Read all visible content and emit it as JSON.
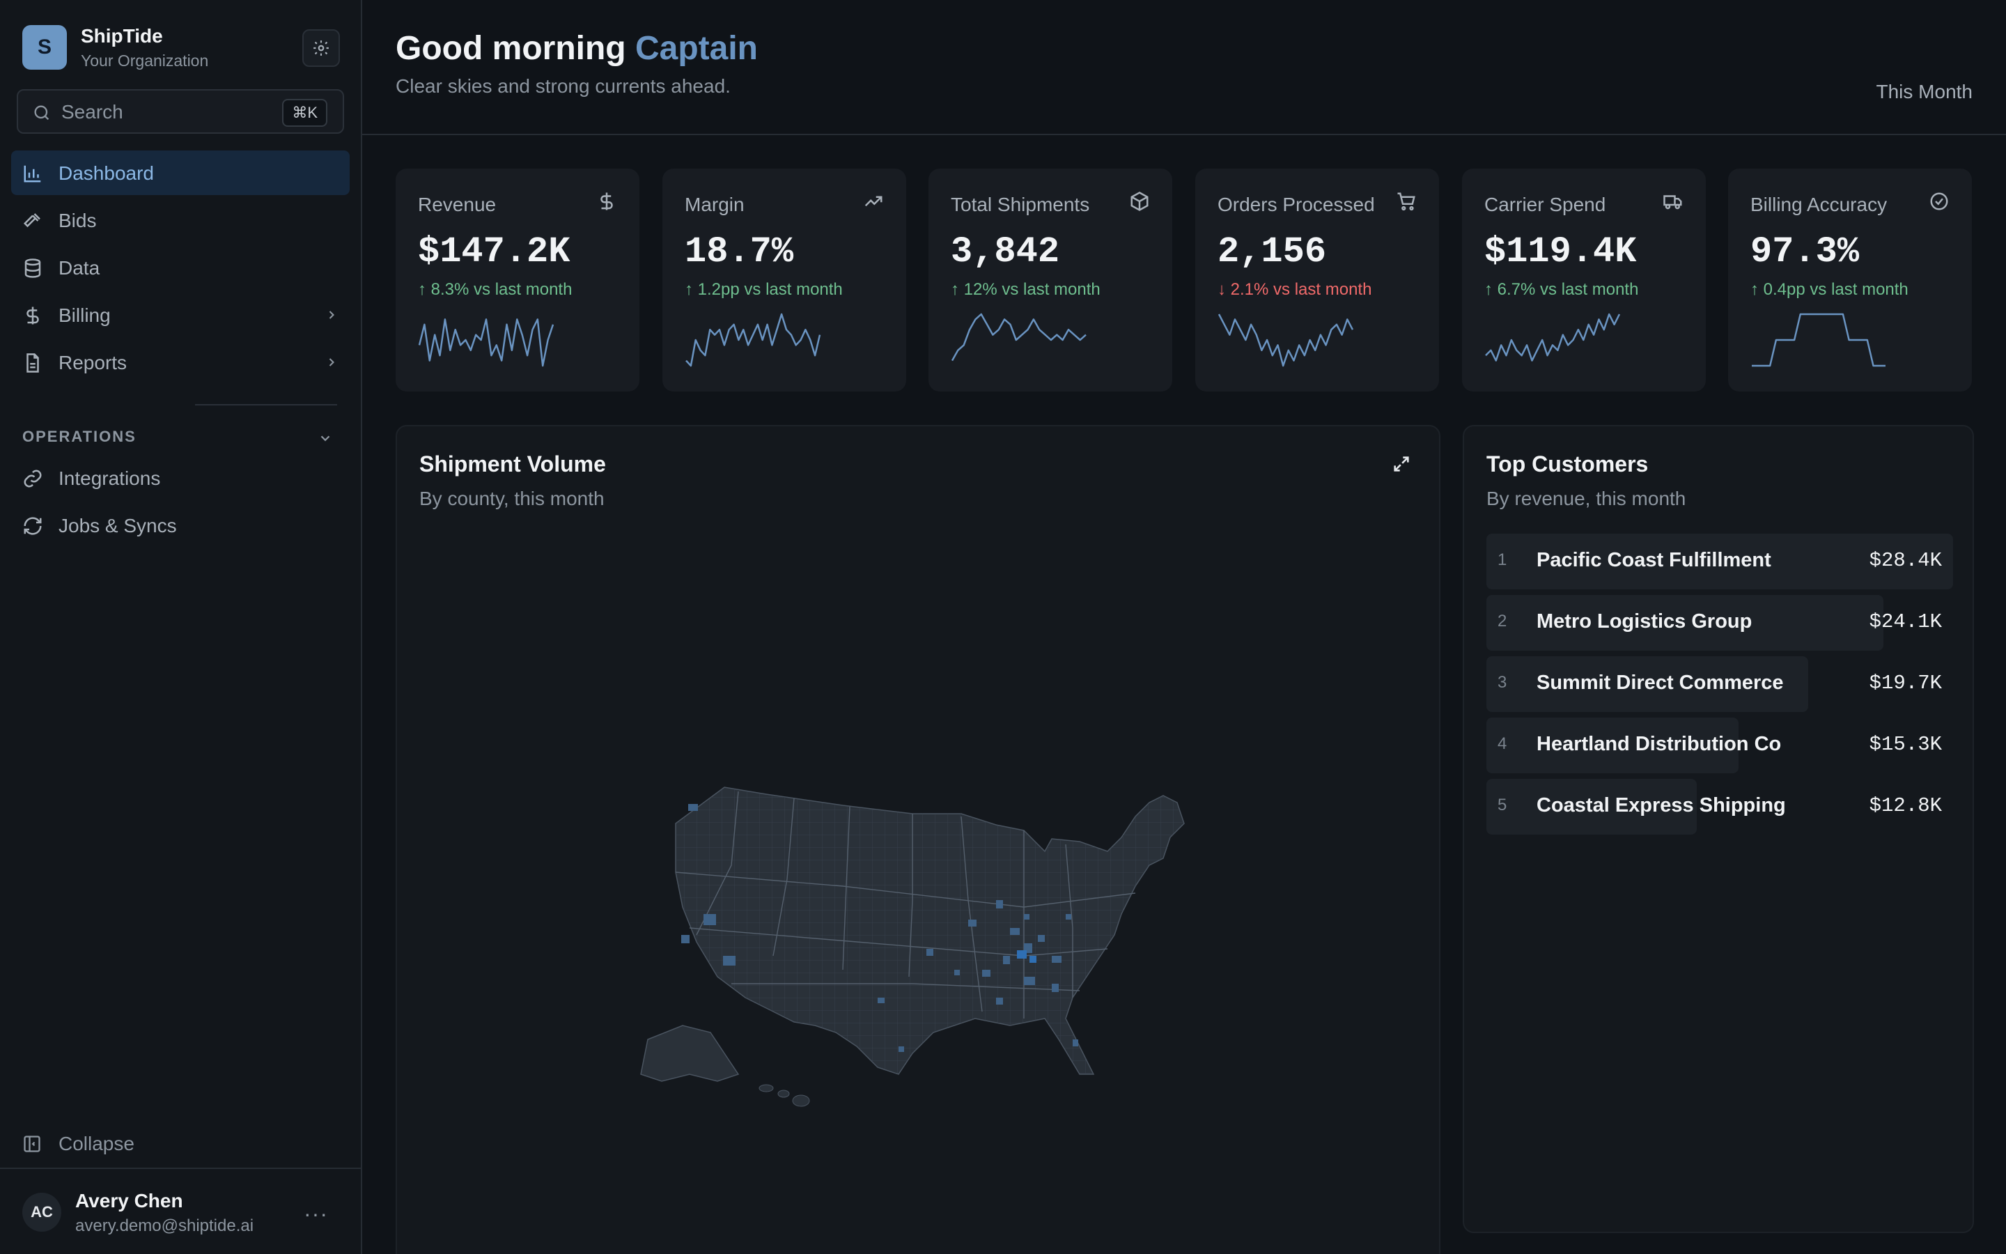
{
  "org": {
    "initial": "S",
    "name": "ShipTide",
    "subtitle": "Your Organization"
  },
  "search": {
    "placeholder": "Search",
    "shortcut": "⌘K"
  },
  "nav": [
    {
      "label": "Dashboard",
      "icon": "bar-chart-icon",
      "active": true
    },
    {
      "label": "Bids",
      "icon": "gavel-icon"
    },
    {
      "label": "Data",
      "icon": "database-icon"
    },
    {
      "label": "Billing",
      "icon": "dollar-icon",
      "expandable": true
    },
    {
      "label": "Reports",
      "icon": "document-icon",
      "expandable": true
    }
  ],
  "operations": {
    "label": "OPERATIONS",
    "items": [
      {
        "label": "Integrations",
        "icon": "link-icon"
      },
      {
        "label": "Jobs & Syncs",
        "icon": "refresh-icon"
      }
    ]
  },
  "collapse_label": "Collapse",
  "user": {
    "initials": "AC",
    "name": "Avery Chen",
    "email": "avery.demo@shiptide.ai"
  },
  "header": {
    "greeting": "Good morning",
    "name": "Captain",
    "subtitle": "Clear skies and strong currents ahead.",
    "period": "This Month"
  },
  "kpis": [
    {
      "label": "Revenue",
      "value": "$147.2K",
      "delta": "↑ 8.3% vs last month",
      "direction": "up",
      "icon": "dollar-icon",
      "spark": [
        0.4,
        0.8,
        0.1,
        0.6,
        0.2,
        0.9,
        0.3,
        0.7,
        0.4,
        0.5,
        0.3,
        0.6,
        0.5,
        0.9,
        0.2,
        0.4,
        0.1,
        0.8,
        0.3,
        0.9,
        0.6,
        0.2,
        0.7,
        0.9,
        0.0,
        0.5,
        0.8
      ]
    },
    {
      "label": "Margin",
      "value": "18.7%",
      "delta": "↑ 1.2pp vs last month",
      "direction": "up",
      "icon": "trending-up-icon",
      "spark": [
        0.1,
        0.0,
        0.5,
        0.3,
        0.2,
        0.7,
        0.6,
        0.7,
        0.4,
        0.7,
        0.8,
        0.5,
        0.7,
        0.4,
        0.6,
        0.8,
        0.5,
        0.8,
        0.4,
        0.7,
        1.0,
        0.7,
        0.6,
        0.4,
        0.5,
        0.7,
        0.5,
        0.2,
        0.6
      ]
    },
    {
      "label": "Total Shipments",
      "value": "3,842",
      "delta": "↑ 12% vs last month",
      "direction": "up",
      "icon": "package-icon",
      "spark": [
        0.1,
        0.3,
        0.4,
        0.7,
        0.9,
        1.0,
        0.8,
        0.6,
        0.7,
        0.9,
        0.8,
        0.5,
        0.6,
        0.7,
        0.9,
        0.7,
        0.6,
        0.5,
        0.6,
        0.5,
        0.7,
        0.6,
        0.5,
        0.6
      ]
    },
    {
      "label": "Orders Processed",
      "value": "2,156",
      "delta": "↓ 2.1% vs last month",
      "direction": "down",
      "icon": "cart-icon",
      "spark": [
        1.0,
        0.8,
        0.6,
        0.9,
        0.7,
        0.5,
        0.8,
        0.6,
        0.3,
        0.5,
        0.2,
        0.4,
        0.0,
        0.3,
        0.1,
        0.4,
        0.2,
        0.5,
        0.3,
        0.6,
        0.4,
        0.7,
        0.8,
        0.6,
        0.9,
        0.7
      ]
    },
    {
      "label": "Carrier Spend",
      "value": "$119.4K",
      "delta": "↑ 6.7% vs last month",
      "direction": "up",
      "icon": "truck-icon",
      "spark": [
        0.2,
        0.3,
        0.1,
        0.4,
        0.2,
        0.5,
        0.3,
        0.2,
        0.4,
        0.1,
        0.3,
        0.5,
        0.2,
        0.4,
        0.3,
        0.6,
        0.4,
        0.5,
        0.7,
        0.5,
        0.8,
        0.6,
        0.9,
        0.7,
        1.0,
        0.8,
        1.0
      ]
    },
    {
      "label": "Billing Accuracy",
      "value": "97.3%",
      "delta": "↑ 0.4pp vs last month",
      "direction": "up",
      "icon": "check-circle-icon",
      "spark": [
        0.0,
        0.0,
        0.0,
        0.0,
        0.5,
        0.5,
        0.5,
        0.5,
        1.0,
        1.0,
        1.0,
        1.0,
        1.0,
        1.0,
        1.0,
        1.0,
        0.5,
        0.5,
        0.5,
        0.5,
        0.0,
        0.0,
        0.0
      ]
    }
  ],
  "shipment_volume": {
    "title": "Shipment Volume",
    "subtitle": "By county, this month"
  },
  "top_customers": {
    "title": "Top Customers",
    "subtitle": "By revenue, this month",
    "rows": [
      {
        "rank": "1",
        "name": "Pacific Coast Fulfillment",
        "value": "$28.4K",
        "share": 1.0
      },
      {
        "rank": "2",
        "name": "Metro Logistics Group",
        "value": "$24.1K",
        "share": 0.85
      },
      {
        "rank": "3",
        "name": "Summit Direct Commerce",
        "value": "$19.7K",
        "share": 0.69
      },
      {
        "rank": "4",
        "name": "Heartland Distribution Co",
        "value": "$15.3K",
        "share": 0.54
      },
      {
        "rank": "5",
        "name": "Coastal Express Shipping",
        "value": "$12.8K",
        "share": 0.45
      }
    ]
  },
  "colors": {
    "accent": "#6a94c2",
    "positive": "#6fbf8f",
    "negative": "#f06a6a",
    "spark": "#6a94c2"
  }
}
